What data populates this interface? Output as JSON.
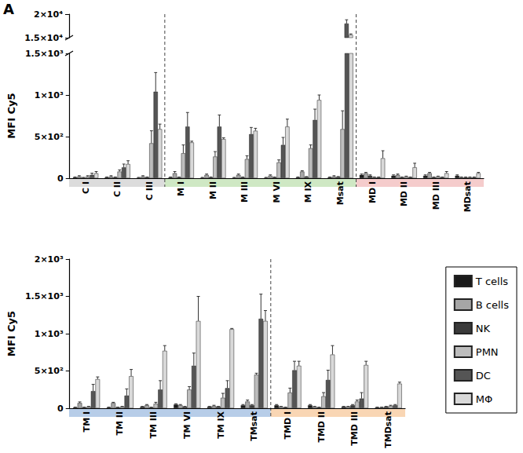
{
  "chart_data": [
    {
      "type": "bar",
      "panel_label": "A",
      "ylabel": "MFI Cy5",
      "categories": [
        "C I",
        "C II",
        "C III",
        "M I",
        "M II",
        "M III",
        "M VI",
        "M IX",
        "Msat",
        "MD I",
        "MD II",
        "MD III",
        "MDsat"
      ],
      "ylim": [
        0,
        20000
      ],
      "ybreak": [
        1500,
        15000
      ],
      "yticks": [
        0,
        {
          "value": 500,
          "label": "5×10²"
        },
        {
          "value": 1000,
          "label": "1×10³"
        },
        {
          "value": 1500,
          "label": "1.5×10³"
        },
        {
          "value": 15000,
          "label": "1.5×10⁴"
        },
        {
          "value": 20000,
          "label": "2×10⁴"
        }
      ],
      "grid": false,
      "bands": [
        {
          "from": "C I",
          "to": "C III",
          "color": "#dcdcdc"
        },
        {
          "from": "M I",
          "to": "Msat",
          "color": "#cfe8c4"
        },
        {
          "from": "MD I",
          "to": "MDsat",
          "color": "#f5cccc"
        }
      ],
      "series": [
        {
          "name": "T cells",
          "color": "#1a1a1a",
          "values": [
            10,
            10,
            5,
            10,
            5,
            5,
            5,
            10,
            10,
            40,
            30,
            30,
            30
          ],
          "errors": [
            5,
            5,
            5,
            5,
            5,
            5,
            5,
            5,
            5,
            10,
            10,
            10,
            10
          ]
        },
        {
          "name": "B cells",
          "color": "#a6a6a6",
          "values": [
            20,
            20,
            20,
            60,
            40,
            40,
            30,
            80,
            20,
            60,
            40,
            60,
            10
          ],
          "errors": [
            10,
            10,
            10,
            20,
            10,
            10,
            10,
            10,
            10,
            10,
            10,
            10,
            5
          ]
        },
        {
          "name": "NK",
          "color": "#3a3a3a",
          "values": [
            5,
            10,
            10,
            10,
            10,
            10,
            10,
            15,
            15,
            30,
            10,
            10,
            10
          ],
          "errors": [
            5,
            5,
            5,
            5,
            5,
            5,
            5,
            5,
            5,
            10,
            5,
            5,
            5
          ]
        },
        {
          "name": "PMN",
          "color": "#bdbdbd",
          "values": [
            20,
            80,
            420,
            300,
            260,
            230,
            190,
            360,
            590,
            10,
            20,
            20,
            10
          ],
          "errors": [
            10,
            20,
            150,
            100,
            60,
            40,
            30,
            40,
            220,
            5,
            5,
            5,
            5
          ]
        },
        {
          "name": "DC",
          "color": "#555555",
          "values": [
            40,
            130,
            1040,
            620,
            620,
            530,
            400,
            700,
            18000,
            10,
            10,
            10,
            10
          ],
          "errors": [
            20,
            40,
            230,
            170,
            140,
            80,
            90,
            130,
            800,
            5,
            5,
            5,
            5
          ]
        },
        {
          "name": "MΦ",
          "color": "#d9d9d9",
          "values": [
            60,
            170,
            590,
            430,
            470,
            570,
            620,
            940,
            15600,
            240,
            130,
            60,
            60
          ],
          "errors": [
            20,
            40,
            60,
            15,
            15,
            30,
            90,
            60,
            200,
            90,
            50,
            20,
            10
          ]
        }
      ]
    },
    {
      "type": "bar",
      "ylabel": "MFI Cy5",
      "categories": [
        "TM I",
        "TM II",
        "TM III",
        "TM VI",
        "TM IX",
        "TMsat",
        "TMD I",
        "TMD II",
        "TMD III",
        "TMDsat"
      ],
      "ylim": [
        0,
        2000
      ],
      "yticks": [
        0,
        {
          "value": 500,
          "label": "5×10²"
        },
        {
          "value": 1000,
          "label": "1×10³"
        },
        {
          "value": 1500,
          "label": "1.5×10³"
        },
        {
          "value": 2000,
          "label": "2×10³"
        }
      ],
      "grid": false,
      "legend": "right",
      "bands": [
        {
          "from": "TM I",
          "to": "TMsat",
          "color": "#b7cde8"
        },
        {
          "from": "TMD I",
          "to": "TMDsat",
          "color": "#f9d6b4"
        }
      ],
      "series": [
        {
          "name": "T cells",
          "color": "#1a1a1a",
          "values": [
            10,
            10,
            20,
            50,
            20,
            40,
            40,
            40,
            20,
            10
          ],
          "errors": [
            5,
            5,
            5,
            10,
            5,
            10,
            10,
            10,
            5,
            5
          ]
        },
        {
          "name": "B cells",
          "color": "#a6a6a6",
          "values": [
            70,
            70,
            40,
            40,
            30,
            90,
            20,
            20,
            20,
            10
          ],
          "errors": [
            15,
            10,
            10,
            10,
            10,
            20,
            5,
            5,
            5,
            5
          ]
        },
        {
          "name": "NK",
          "color": "#3a3a3a",
          "values": [
            10,
            10,
            10,
            20,
            20,
            40,
            10,
            10,
            40,
            20
          ],
          "errors": [
            5,
            5,
            5,
            5,
            5,
            10,
            5,
            5,
            10,
            5
          ]
        },
        {
          "name": "PMN",
          "color": "#bdbdbd",
          "values": [
            20,
            20,
            60,
            250,
            140,
            450,
            210,
            160,
            90,
            30
          ],
          "errors": [
            5,
            5,
            20,
            40,
            60,
            20,
            60,
            50,
            20,
            10
          ]
        },
        {
          "name": "DC",
          "color": "#555555",
          "values": [
            230,
            170,
            250,
            570,
            270,
            1200,
            510,
            380,
            130,
            40
          ],
          "errors": [
            90,
            90,
            120,
            170,
            100,
            330,
            120,
            130,
            80,
            10
          ]
        },
        {
          "name": "MΦ",
          "color": "#d9d9d9",
          "values": [
            390,
            430,
            770,
            1170,
            1060,
            1170,
            570,
            720,
            580,
            330
          ],
          "errors": [
            30,
            90,
            70,
            330,
            10,
            140,
            60,
            120,
            50,
            20
          ]
        }
      ]
    }
  ]
}
